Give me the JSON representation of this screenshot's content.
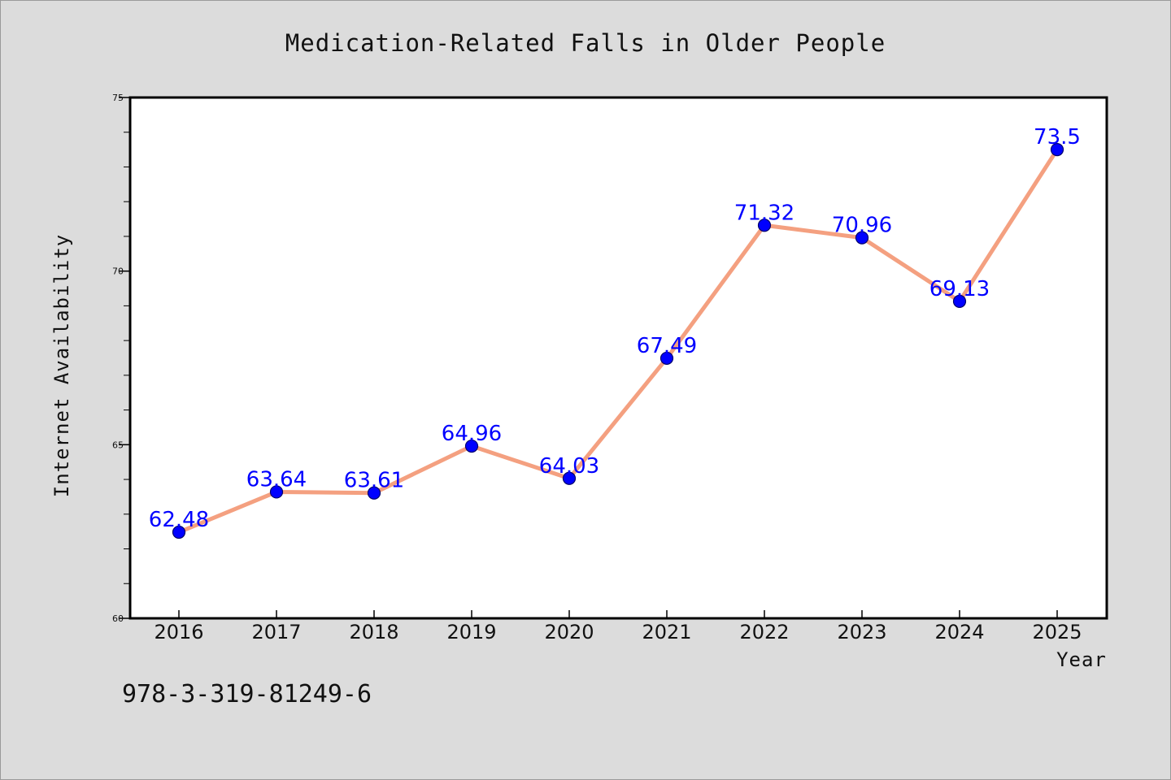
{
  "chart_data": {
    "type": "line",
    "title": "Medication-Related Falls in Older People",
    "xlabel": "Year",
    "ylabel": "Internet Availability",
    "categories": [
      "2016",
      "2017",
      "2018",
      "2019",
      "2020",
      "2021",
      "2022",
      "2023",
      "2024",
      "2025"
    ],
    "values": [
      62.48,
      63.64,
      63.61,
      64.96,
      64.03,
      67.49,
      71.32,
      70.96,
      69.13,
      73.5
    ],
    "data_labels": [
      "62.48",
      "63.64",
      "63.61",
      "64.96",
      "64.03",
      "67.49",
      "71.32",
      "70.96",
      "69.13",
      "73.5"
    ],
    "ylim": [
      60,
      75
    ],
    "yticks": [
      60,
      65,
      70,
      75
    ],
    "ytick_labels": [
      "60",
      "65",
      "70",
      "75"
    ],
    "grid": false,
    "line_color": "#f4a080",
    "marker_color": "#0000ff",
    "label_color": "#0000ff"
  },
  "footer": {
    "isbn": "978-3-319-81249-6"
  }
}
